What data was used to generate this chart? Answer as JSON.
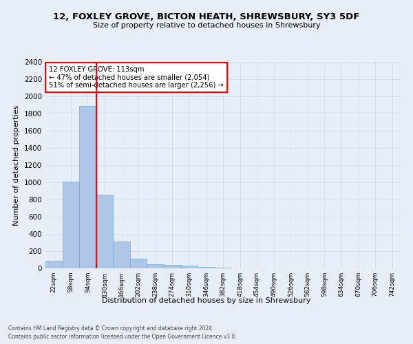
{
  "title": "12, FOXLEY GROVE, BICTON HEATH, SHREWSBURY, SY3 5DF",
  "subtitle": "Size of property relative to detached houses in Shrewsbury",
  "xlabel": "Distribution of detached houses by size in Shrewsbury",
  "ylabel": "Number of detached properties",
  "bin_labels": [
    "22sqm",
    "58sqm",
    "94sqm",
    "130sqm",
    "166sqm",
    "202sqm",
    "238sqm",
    "274sqm",
    "310sqm",
    "346sqm",
    "382sqm",
    "418sqm",
    "454sqm",
    "490sqm",
    "526sqm",
    "562sqm",
    "598sqm",
    "634sqm",
    "670sqm",
    "706sqm",
    "742sqm"
  ],
  "bar_heights": [
    85,
    1010,
    1890,
    860,
    315,
    115,
    50,
    40,
    30,
    20,
    10,
    0,
    0,
    0,
    0,
    0,
    0,
    0,
    0,
    0,
    0
  ],
  "bar_color": "#aec7e8",
  "bar_edge_color": "#6baed6",
  "vline_x": 2.5,
  "vline_color": "red",
  "annotation_text": "12 FOXLEY GROVE: 113sqm\n← 47% of detached houses are smaller (2,054)\n51% of semi-detached houses are larger (2,256) →",
  "annotation_box_color": "#ffffff",
  "annotation_box_edge_color": "red",
  "ylim": [
    0,
    2400
  ],
  "yticks": [
    0,
    200,
    400,
    600,
    800,
    1000,
    1200,
    1400,
    1600,
    1800,
    2000,
    2200,
    2400
  ],
  "grid_color": "#d0d8e8",
  "background_color": "#e8eef8",
  "footer_line1": "Contains HM Land Registry data © Crown copyright and database right 2024.",
  "footer_line2": "Contains public sector information licensed under the Open Government Licence v3.0."
}
